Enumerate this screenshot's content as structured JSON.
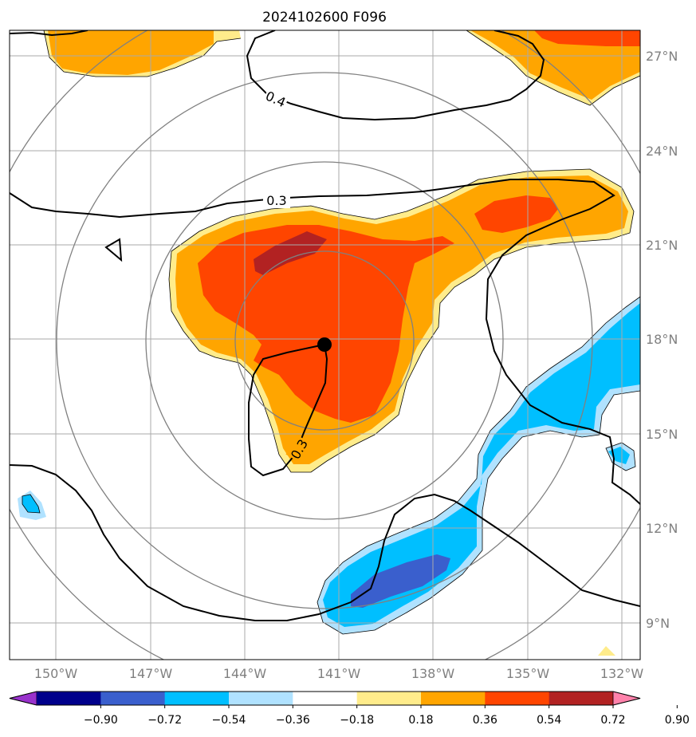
{
  "title": "2024102600 F096",
  "lon_labels": [
    "150°W",
    "147°W",
    "144°W",
    "141°W",
    "138°W",
    "135°W",
    "132°W"
  ],
  "lat_labels": [
    "27°N",
    "24°N",
    "21°N",
    "18°N",
    "15°N",
    "12°N",
    "9°N"
  ],
  "contour_labels": [
    "0.4",
    "0.3",
    "0.3"
  ],
  "colorbar": {
    "ticks": [
      "−0.90",
      "−0.72",
      "−0.54",
      "−0.36",
      "−0.18",
      "0.18",
      "0.36",
      "0.54",
      "0.72",
      "0.90"
    ],
    "colors": [
      "#9932cc",
      "#00008b",
      "#3a5fcd",
      "#00bfff",
      "#b0e2ff",
      "#ffffff",
      "#ffec8b",
      "#ffa500",
      "#ff4500",
      "#b22222",
      "#ff82ab"
    ]
  },
  "fill_colors": {
    "light_yellow": "#ffec8b",
    "orange": "#ffa500",
    "red_orange": "#ff4500",
    "dark_red": "#b22222",
    "light_blue": "#b0e2ff",
    "cyan": "#00bfff",
    "blue": "#3a5fcd"
  },
  "center_marker": "storm-center"
}
